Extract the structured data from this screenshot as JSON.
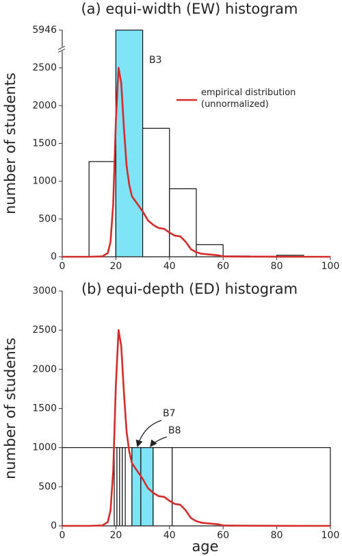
{
  "chart_data": [
    {
      "type": "histogram",
      "title": "(a) equi-width (EW) histogram",
      "ylabel": "number of students",
      "bins": [
        0,
        10,
        20,
        30,
        40,
        50,
        60,
        70,
        80,
        90,
        100
      ],
      "values": [
        0,
        1260,
        5946,
        1700,
        900,
        160,
        10,
        5,
        20,
        0
      ],
      "bar_colors": [
        "#ffffff",
        "#ffffff",
        "#80e4f7",
        "#ffffff",
        "#ffffff",
        "#ffffff",
        "#ffffff",
        "#ffffff",
        "#ffffff",
        "#ffffff"
      ],
      "annotations": [
        "B3"
      ],
      "xlim": [
        0,
        100
      ],
      "xticks": [
        0,
        20,
        40,
        60,
        80,
        100
      ],
      "ylim": [
        0,
        5946
      ],
      "ybreak": 2750,
      "yticks": [
        0,
        500,
        1000,
        1500,
        2000,
        2500,
        5946
      ],
      "series": [
        {
          "name": "empirical distribution (unnormalized)",
          "color": "#d42a2a",
          "x": [
            0,
            10,
            15,
            17,
            18,
            19,
            20,
            21,
            22,
            23,
            24,
            25,
            26,
            28,
            30,
            32,
            34,
            36,
            38,
            40,
            42,
            44,
            46,
            48,
            50,
            52,
            55,
            58,
            60,
            65,
            70,
            80,
            90,
            100
          ],
          "values": [
            0,
            0,
            5,
            50,
            200,
            700,
            1800,
            2500,
            2300,
            1700,
            1200,
            950,
            800,
            700,
            600,
            480,
            420,
            380,
            370,
            320,
            280,
            270,
            200,
            100,
            60,
            40,
            30,
            20,
            5,
            3,
            2,
            1,
            0,
            0
          ]
        }
      ]
    },
    {
      "type": "histogram",
      "title": "(b) equi-depth (ED) histogram",
      "ylabel": "number of students",
      "xlabel": "age",
      "bins": [
        0,
        19.4,
        20.4,
        21.4,
        22.4,
        23.5,
        26,
        29.3,
        33.9,
        41,
        100
      ],
      "values": [
        1000,
        1000,
        1000,
        1000,
        1000,
        1000,
        1000,
        1000,
        1000,
        1000
      ],
      "bar_colors": [
        "#ffffff",
        "#ffffff",
        "#ffffff",
        "#ffffff",
        "#ffffff",
        "#ffffff",
        "#80e4f7",
        "#80e4f7",
        "#ffffff",
        "#ffffff"
      ],
      "annotations": [
        "B7",
        "B8"
      ],
      "xlim": [
        0,
        100
      ],
      "xticks": [
        0,
        20,
        40,
        60,
        80,
        100
      ],
      "ylim": [
        0,
        3000
      ],
      "yticks": [
        0,
        500,
        1000,
        1500,
        2000,
        2500,
        3000
      ],
      "series": [
        {
          "name": "empirical distribution (unnormalized)",
          "color": "#d42a2a",
          "x": [
            0,
            10,
            15,
            17,
            18,
            19,
            20,
            21,
            22,
            23,
            24,
            25,
            26,
            28,
            30,
            32,
            34,
            36,
            38,
            40,
            42,
            44,
            46,
            48,
            50,
            52,
            55,
            58,
            60,
            65,
            70,
            80,
            90,
            100
          ],
          "values": [
            0,
            0,
            5,
            50,
            200,
            700,
            1800,
            2500,
            2300,
            1700,
            1200,
            950,
            800,
            700,
            600,
            480,
            420,
            380,
            370,
            320,
            280,
            270,
            200,
            100,
            60,
            40,
            30,
            20,
            5,
            3,
            2,
            1,
            0,
            0
          ]
        }
      ]
    }
  ]
}
